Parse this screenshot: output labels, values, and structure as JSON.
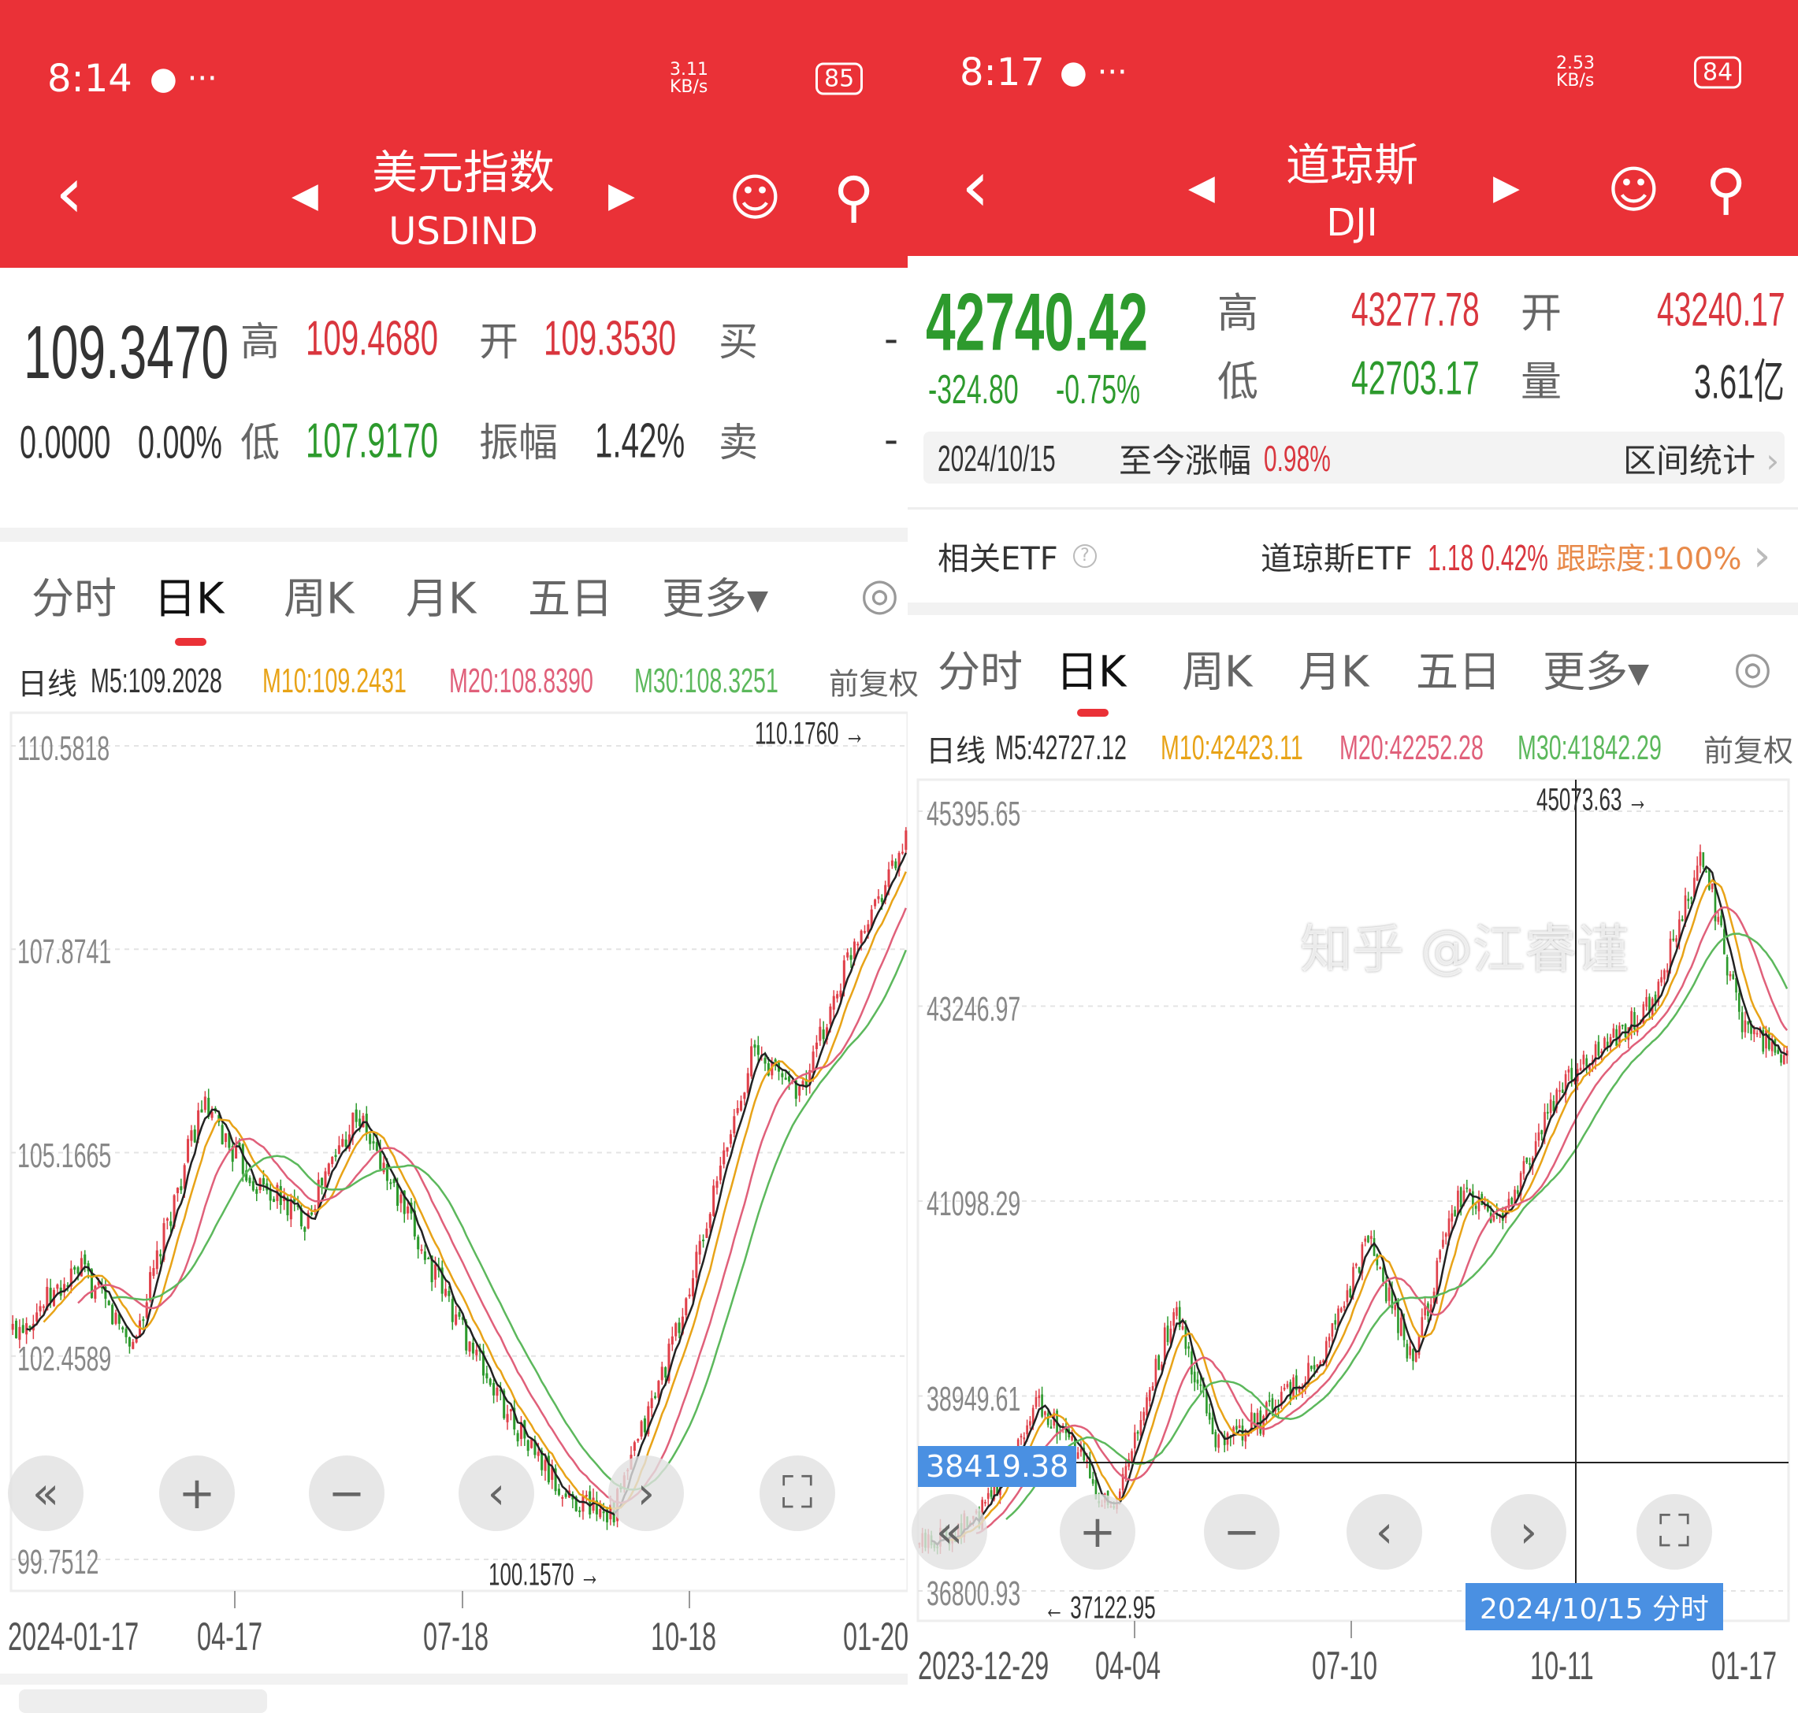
{
  "left": {
    "status": {
      "time": "8:14",
      "speed": "3.11 KB/s",
      "battery": "85"
    },
    "header": {
      "title": "美元指数",
      "subtitle": "USDIND"
    },
    "quote": {
      "price": "109.3470",
      "change": "0.0000",
      "change_pct": "0.00%",
      "high_label": "高",
      "high": "109.4680",
      "open_label": "开",
      "open": "109.3530",
      "buy_label": "买",
      "buy": "-",
      "low_label": "低",
      "low": "107.9170",
      "amp_label": "振幅",
      "amp": "1.42%",
      "sell_label": "卖",
      "sell": "-"
    },
    "tabs": [
      "分时",
      "日K",
      "周K",
      "月K",
      "五日",
      "更多▾"
    ],
    "active_tab": "日K",
    "ma": {
      "label": "日线",
      "m5": "M5:109.2028",
      "m10": "M10:109.2431",
      "m20": "M20:108.8390",
      "m30": "M30:108.3251",
      "adj": "前复权"
    },
    "y_labels": [
      "110.5818",
      "107.8741",
      "105.1665",
      "102.4589",
      "99.7512"
    ],
    "x_labels": [
      "2024-01-17",
      "04-17",
      "07-18",
      "10-18",
      "01-20"
    ],
    "max_label": "110.1760",
    "min_label": "100.1570"
  },
  "right": {
    "status": {
      "time": "8:17",
      "speed": "2.53 KB/s",
      "battery": "84"
    },
    "header": {
      "title": "道琼斯",
      "subtitle": "DJI"
    },
    "quote": {
      "price": "42740.42",
      "change": "-324.80",
      "change_pct": "-0.75%",
      "high_label": "高",
      "high": "43277.78",
      "open_label": "开",
      "open": "43240.17",
      "low_label": "低",
      "low": "42703.17",
      "vol_label": "量",
      "vol": "3.61亿"
    },
    "range": {
      "date": "2024/10/15",
      "label": "至今涨幅",
      "value": "0.98%",
      "stats": "区间统计"
    },
    "etf": {
      "label": "相关ETF",
      "name": "道琼斯ETF",
      "price": "1.18",
      "pct": "0.42%",
      "track": "跟踪度:100%"
    },
    "tabs": [
      "分时",
      "日K",
      "周K",
      "月K",
      "五日",
      "更多▾"
    ],
    "active_tab": "日K",
    "ma": {
      "label": "日线",
      "m5": "M5:42727.12",
      "m10": "M10:42423.11",
      "m20": "M20:42252.28",
      "m30": "M30:41842.29",
      "adj": "前复权"
    },
    "y_labels": [
      "45395.65",
      "43246.97",
      "41098.29",
      "38949.61",
      "36800.93"
    ],
    "x_labels": [
      "2023-12-29",
      "04-04",
      "07-10",
      "10-11",
      "01-17"
    ],
    "max_label": "45073.63",
    "min_label": "37122.95",
    "crosshair_value": "38419.38",
    "crosshair_date": "2024/10/15 分时"
  },
  "watermark": "知乎 @江睿谨",
  "colors": {
    "header": "#ea3137",
    "up": "#e0404a",
    "down": "#2d9a2d",
    "m5": "#222222",
    "m10": "#e8a317",
    "m20": "#e0607a",
    "m30": "#5cb85c",
    "crosshair": "#4a90e2"
  },
  "chart_data": [
    {
      "type": "candlestick",
      "series_name": "USDIND",
      "ylim": [
        99.7512,
        110.5818
      ],
      "approx_close_path": [
        [
          0,
          102.8
        ],
        [
          20,
          103.6
        ],
        [
          35,
          102.6
        ],
        [
          55,
          105.8
        ],
        [
          70,
          104.8
        ],
        [
          85,
          104.3
        ],
        [
          100,
          105.7
        ],
        [
          120,
          103.8
        ],
        [
          140,
          102.0
        ],
        [
          160,
          100.6
        ],
        [
          175,
          100.4
        ],
        [
          195,
          103.0
        ],
        [
          215,
          106.5
        ],
        [
          230,
          106.0
        ],
        [
          245,
          108.0
        ],
        [
          260,
          109.3
        ]
      ]
    },
    {
      "type": "candlestick",
      "series_name": "DJI",
      "ylim": [
        36800.93,
        45395.65
      ],
      "approx_close_path": [
        [
          0,
          37300
        ],
        [
          20,
          37600
        ],
        [
          40,
          38900
        ],
        [
          55,
          38200
        ],
        [
          65,
          37600
        ],
        [
          85,
          39900
        ],
        [
          100,
          38400
        ],
        [
          115,
          38700
        ],
        [
          135,
          39400
        ],
        [
          150,
          40700
        ],
        [
          165,
          39300
        ],
        [
          180,
          41200
        ],
        [
          195,
          40900
        ],
        [
          215,
          42400
        ],
        [
          230,
          42800
        ],
        [
          245,
          43300
        ],
        [
          262,
          44900
        ],
        [
          275,
          43000
        ],
        [
          290,
          42700
        ]
      ]
    }
  ]
}
